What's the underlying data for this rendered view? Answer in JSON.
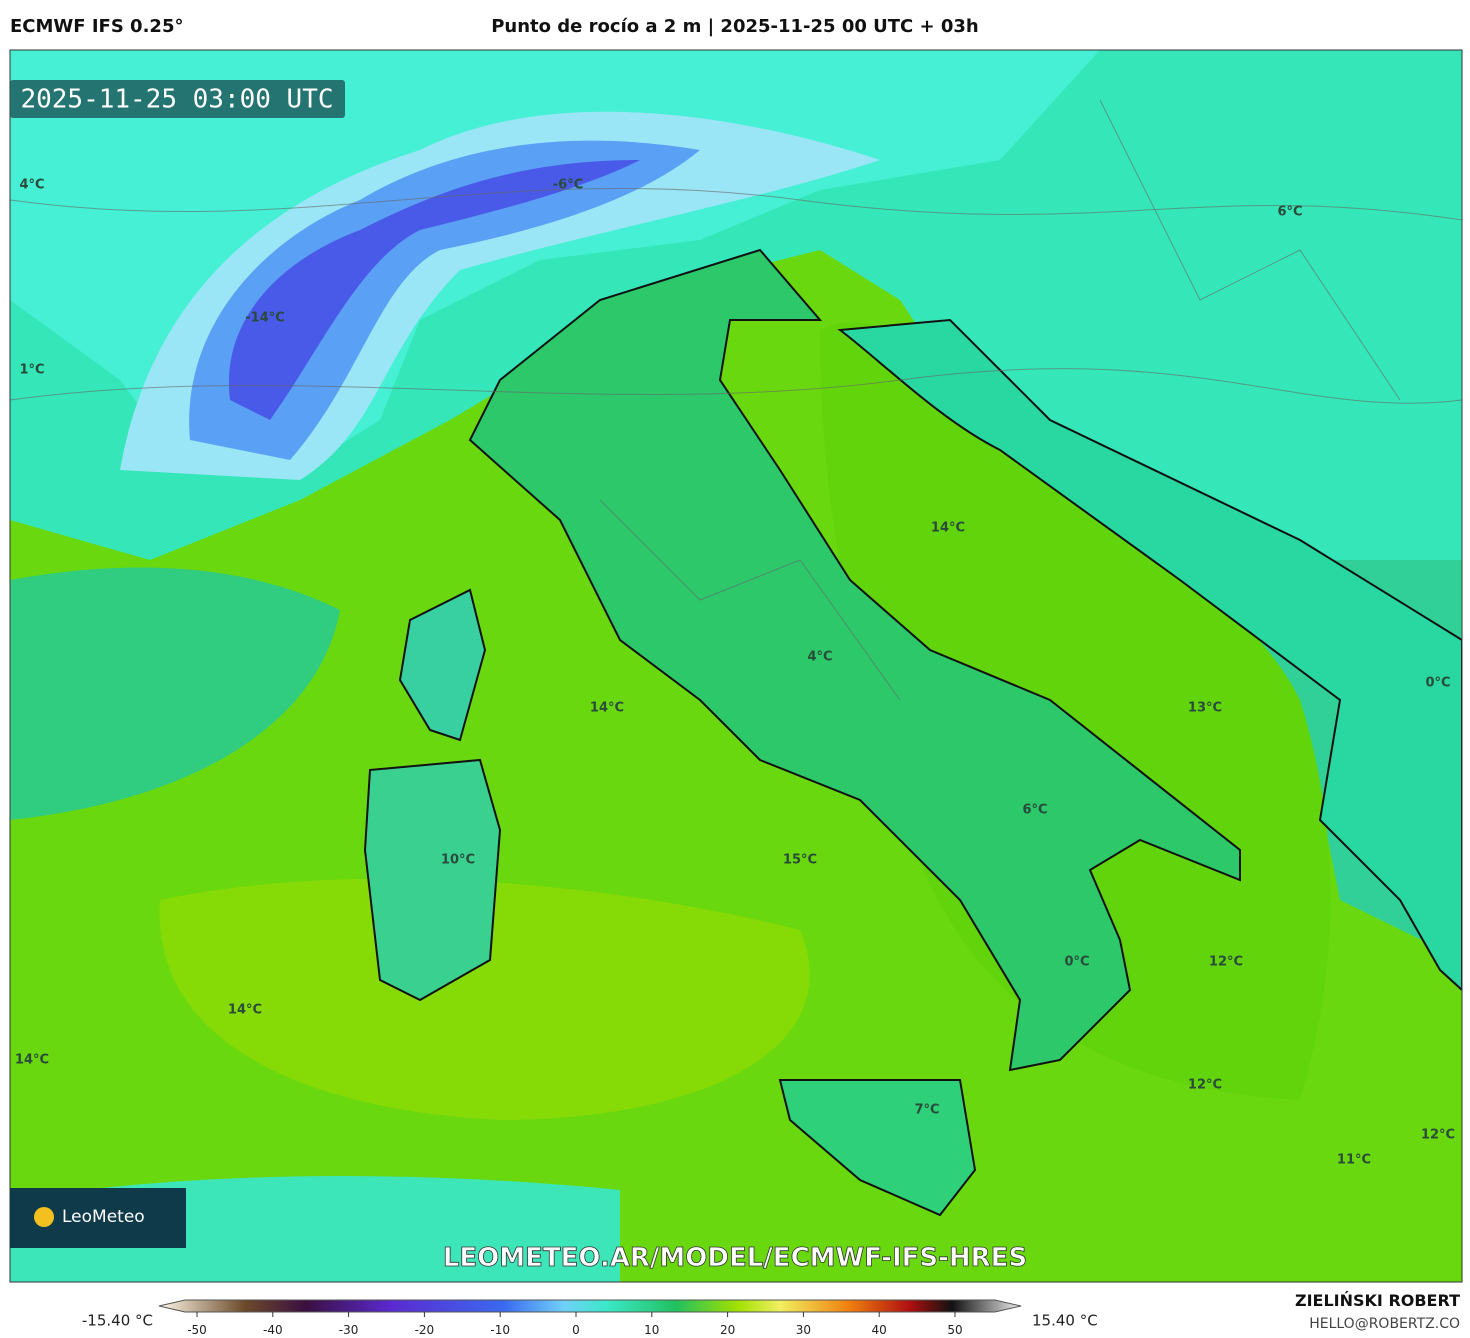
{
  "header": {
    "model": "ECMWF IFS 0.25°",
    "title": "Punto de rocío a 2 m | 2025-11-25 00 UTC + 03h"
  },
  "map": {
    "timestamp": "2025-11-25 03:00 UTC",
    "labels": [
      "4°C",
      "-6°C",
      "6°C",
      "-14°C",
      "1°C",
      "14°C",
      "4°C",
      "0°C",
      "14°C",
      "13°C",
      "6°C",
      "10°C",
      "15°C",
      "0°C",
      "12°C",
      "14°C",
      "14°C",
      "12°C",
      "7°C",
      "12°C",
      "11°C"
    ],
    "logo": "LeoMeteo",
    "url": "LEOMETEO.AR/MODEL/ECMWF-IFS-HRES"
  },
  "colorbar": {
    "min_label": "-15.40 °C",
    "max_label": "15.40 °C",
    "ticks": [
      -50,
      -40,
      -30,
      -20,
      -10,
      0,
      10,
      20,
      30,
      40,
      50
    ]
  },
  "credits": {
    "author": "ZIELIŃSKI ROBERT",
    "email": "HELLO@ROBERTZ.CO"
  }
}
